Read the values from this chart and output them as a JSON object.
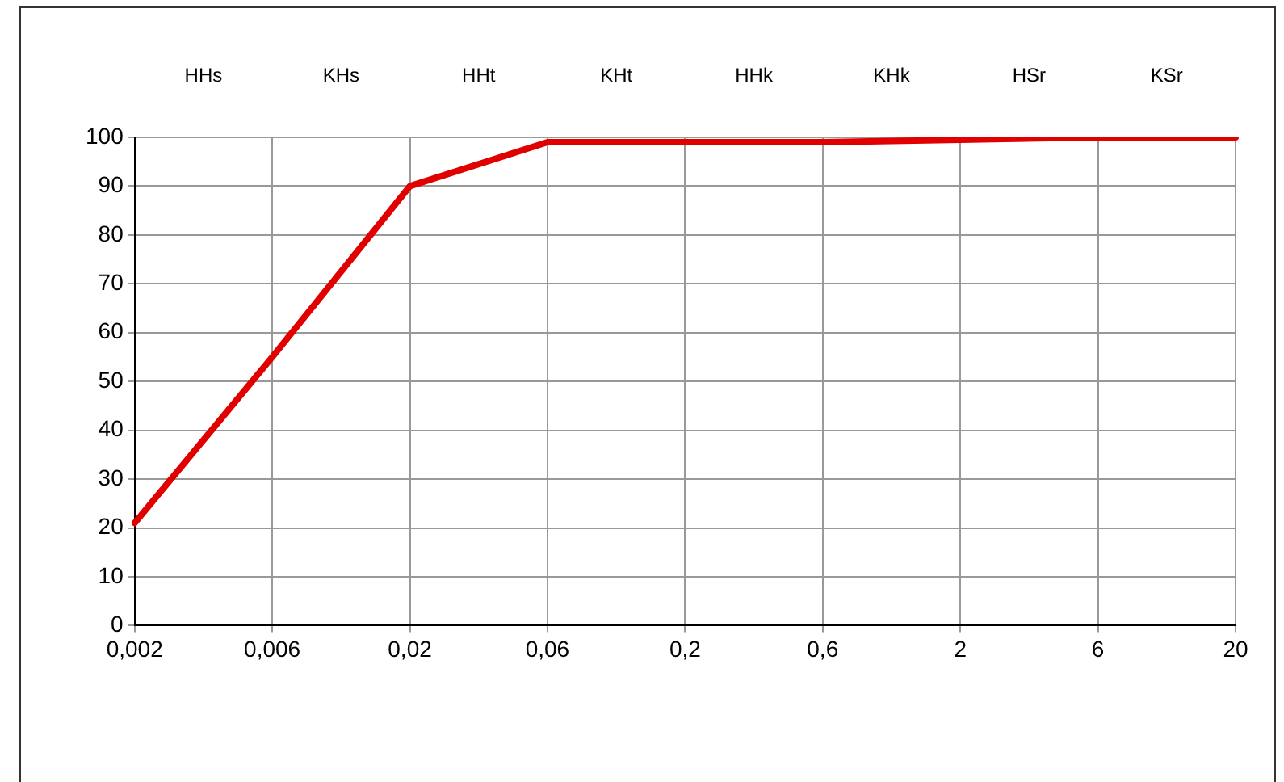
{
  "chart_data": {
    "type": "line",
    "categories": [
      "0,002",
      "0,006",
      "0,02",
      "0,06",
      "0,2",
      "0,6",
      "2",
      "6",
      "20"
    ],
    "series": [
      {
        "color": "#e00000",
        "values": [
          21,
          55,
          90,
          99,
          99,
          99,
          99.5,
          100,
          100
        ]
      }
    ],
    "ylim": [
      0,
      100
    ],
    "yticks": [
      0,
      10,
      20,
      30,
      40,
      50,
      60,
      70,
      80,
      90,
      100
    ],
    "grid": true,
    "legend": false,
    "marker": "none",
    "annotations": [
      "HHs",
      "KHs",
      "HHt",
      "KHt",
      "HHk",
      "KHk",
      "HSr",
      "KSr"
    ]
  }
}
